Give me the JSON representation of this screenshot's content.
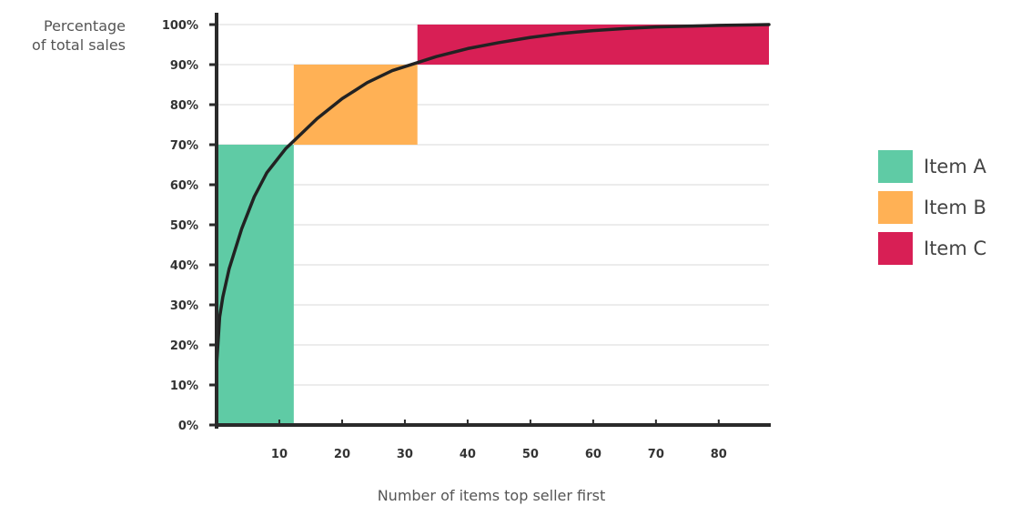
{
  "chart_data": {
    "type": "area",
    "xlabel": "Number of items top seller first",
    "ylabel_lines": [
      "Percentage",
      "of total sales"
    ],
    "xlim": [
      0,
      88
    ],
    "ylim": [
      0,
      100
    ],
    "x_ticks": [
      10,
      20,
      30,
      40,
      50,
      60,
      70,
      80
    ],
    "y_ticks": [
      0,
      10,
      20,
      30,
      40,
      50,
      60,
      70,
      80,
      90,
      100
    ],
    "y_tick_suffix": "%",
    "grid": true,
    "legend_position": "right",
    "regions": [
      {
        "name": "Item A",
        "x_start": 0,
        "x_end": 12.3,
        "y_start": 0,
        "y_end": 70,
        "color": "#5fcba5"
      },
      {
        "name": "Item B",
        "x_start": 12.3,
        "x_end": 32,
        "y_start": 70,
        "y_end": 90,
        "color": "#ffb155"
      },
      {
        "name": "Item C",
        "x_start": 32,
        "x_end": 88,
        "y_start": 90,
        "y_end": 100,
        "color": "#d81f55"
      }
    ],
    "curve": {
      "x": [
        0,
        0.5,
        1,
        2,
        3,
        4,
        5,
        6,
        7,
        8,
        9,
        10,
        11,
        12,
        14,
        16,
        18,
        20,
        22,
        24,
        26,
        28,
        30,
        32,
        35,
        40,
        45,
        50,
        55,
        60,
        65,
        70,
        75,
        80,
        85,
        88
      ],
      "y": [
        15,
        27,
        32,
        39,
        44,
        49,
        53,
        57,
        60,
        63,
        65,
        67,
        69,
        70.5,
        73.5,
        76.5,
        79,
        81.5,
        83.5,
        85.5,
        87,
        88.5,
        89.5,
        90.5,
        92,
        94,
        95.5,
        96.8,
        97.8,
        98.5,
        99,
        99.4,
        99.6,
        99.8,
        99.9,
        100
      ],
      "color": "#222222"
    }
  }
}
